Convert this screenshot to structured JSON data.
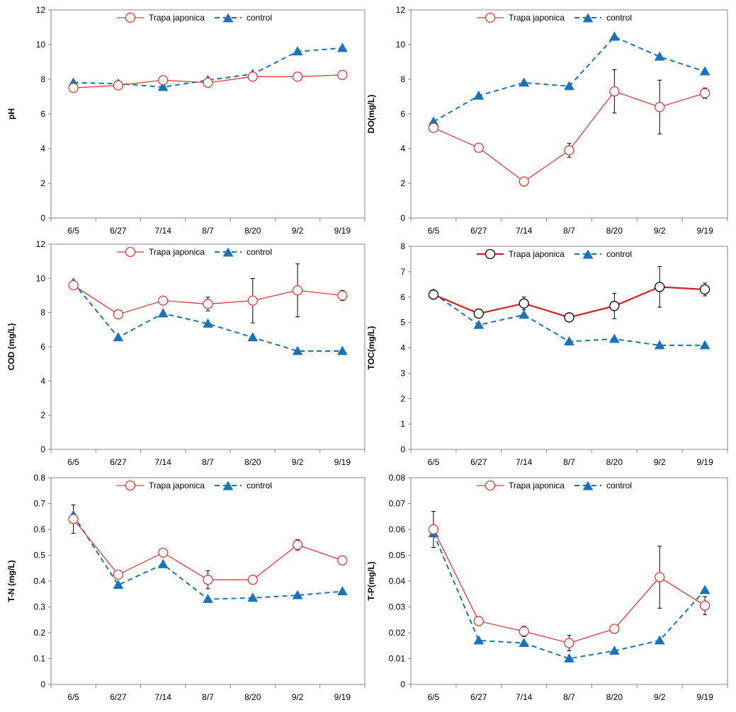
{
  "colors": {
    "treatment": "#e03a3a",
    "treatment_toc": "#d42020",
    "control": "#1a72b8",
    "errorbar": "#000000",
    "axis": "#868686"
  },
  "chart_data": [
    {
      "type": "line",
      "ylabel": "pH",
      "ylim": [
        0,
        12
      ],
      "yticks": [
        "0",
        "2",
        "4",
        "6",
        "8",
        "10",
        "12"
      ],
      "categories": [
        "6/5",
        "6/27",
        "7/14",
        "8/7",
        "8/20",
        "9/2",
        "9/19"
      ],
      "legend": "top",
      "grid": false,
      "series": [
        {
          "name": "Trapa japonica",
          "marker": "circle",
          "values": [
            7.5,
            7.65,
            7.95,
            7.8,
            8.15,
            8.15,
            8.25
          ],
          "errors": [
            0.1,
            0.1,
            0.1,
            0.15,
            0.2,
            0.2,
            0.15
          ]
        },
        {
          "name": "control",
          "marker": "triangle",
          "values": [
            7.8,
            7.75,
            7.55,
            7.95,
            8.3,
            9.6,
            9.8
          ]
        }
      ]
    },
    {
      "type": "line",
      "ylabel": "DO(mg/L)",
      "ylim": [
        0,
        12
      ],
      "yticks": [
        "0",
        "2",
        "4",
        "6",
        "8",
        "10",
        "12"
      ],
      "categories": [
        "6/5",
        "6/27",
        "7/14",
        "8/7",
        "8/20",
        "9/2",
        "9/19"
      ],
      "legend": "top",
      "grid": false,
      "series": [
        {
          "name": "Trapa japonica",
          "marker": "circle",
          "values": [
            5.2,
            4.05,
            2.1,
            3.9,
            7.3,
            6.4,
            7.2
          ],
          "errors": [
            0.2,
            0.1,
            0.1,
            0.4,
            1.25,
            1.55,
            0.3
          ]
        },
        {
          "name": "control",
          "marker": "triangle",
          "values": [
            5.55,
            7.05,
            7.8,
            7.6,
            10.45,
            9.3,
            8.45
          ]
        }
      ]
    },
    {
      "type": "line",
      "ylabel": "COD (mg/L)",
      "ylim": [
        0,
        12
      ],
      "yticks": [
        "0",
        "2",
        "4",
        "6",
        "8",
        "10",
        "12"
      ],
      "categories": [
        "6/5",
        "6/27",
        "7/14",
        "8/7",
        "8/20",
        "9/2",
        "9/19"
      ],
      "legend": "top",
      "grid": false,
      "series": [
        {
          "name": "Trapa japonica",
          "marker": "circle",
          "values": [
            9.6,
            7.9,
            8.7,
            8.5,
            8.7,
            9.3,
            9.0
          ],
          "errors": [
            0.15,
            0.1,
            0.1,
            0.4,
            1.3,
            1.55,
            0.3
          ]
        },
        {
          "name": "control",
          "marker": "triangle",
          "values": [
            9.75,
            6.55,
            7.95,
            7.35,
            6.55,
            5.75,
            5.75
          ]
        }
      ]
    },
    {
      "type": "line",
      "ylabel": "TOC(mg/L)",
      "ylim": [
        0,
        8
      ],
      "yticks": [
        "0",
        "1",
        "2",
        "3",
        "4",
        "5",
        "6",
        "7",
        "8"
      ],
      "categories": [
        "6/5",
        "6/27",
        "7/14",
        "8/7",
        "8/20",
        "9/2",
        "9/19"
      ],
      "legend": "top",
      "grid": false,
      "series": [
        {
          "name": "Trapa japonica",
          "marker": "circle-black",
          "values": [
            6.1,
            5.35,
            5.75,
            5.2,
            5.65,
            6.4,
            6.3
          ],
          "errors": [
            0.1,
            0.1,
            0.25,
            0.05,
            0.5,
            0.8,
            0.25
          ]
        },
        {
          "name": "control",
          "marker": "triangle",
          "values": [
            6.15,
            4.9,
            5.3,
            4.25,
            4.35,
            4.1,
            4.1
          ]
        }
      ]
    },
    {
      "type": "line",
      "ylabel": "T-N (mg/L)",
      "ylim": [
        0,
        0.8
      ],
      "yticks": [
        "0",
        "0.1",
        "0.2",
        "0.3",
        "0.4",
        "0.5",
        "0.6",
        "0.7",
        "0.8"
      ],
      "categories": [
        "6/5",
        "6/27",
        "7/14",
        "8/7",
        "8/20",
        "9/2",
        "9/19"
      ],
      "legend": "top",
      "grid": false,
      "series": [
        {
          "name": "Trapa japonica",
          "marker": "circle",
          "values": [
            0.64,
            0.425,
            0.51,
            0.405,
            0.405,
            0.54,
            0.48
          ],
          "errors": [
            0.055,
            0.01,
            0.01,
            0.035,
            0.01,
            0.02,
            0.01
          ]
        },
        {
          "name": "control",
          "marker": "triangle",
          "values": [
            0.655,
            0.385,
            0.465,
            0.33,
            0.335,
            0.345,
            0.36
          ]
        }
      ]
    },
    {
      "type": "line",
      "ylabel": "T-P(mg/L)",
      "ylim": [
        0,
        0.08
      ],
      "yticks": [
        "0",
        "0.01",
        "0.02",
        "0.03",
        "0.04",
        "0.05",
        "0.06",
        "0.07",
        "0.08"
      ],
      "categories": [
        "6/5",
        "6/27",
        "7/14",
        "8/7",
        "8/20",
        "9/2",
        "9/19"
      ],
      "legend": "top",
      "grid": false,
      "series": [
        {
          "name": "Trapa japonica",
          "marker": "circle",
          "values": [
            0.06,
            0.0245,
            0.0205,
            0.016,
            0.0215,
            0.0415,
            0.0305
          ],
          "errors": [
            0.007,
            0.001,
            0.002,
            0.003,
            0.001,
            0.012,
            0.0035
          ]
        },
        {
          "name": "control",
          "marker": "triangle",
          "values": [
            0.0585,
            0.017,
            0.016,
            0.01,
            0.013,
            0.017,
            0.0365
          ]
        }
      ]
    }
  ]
}
